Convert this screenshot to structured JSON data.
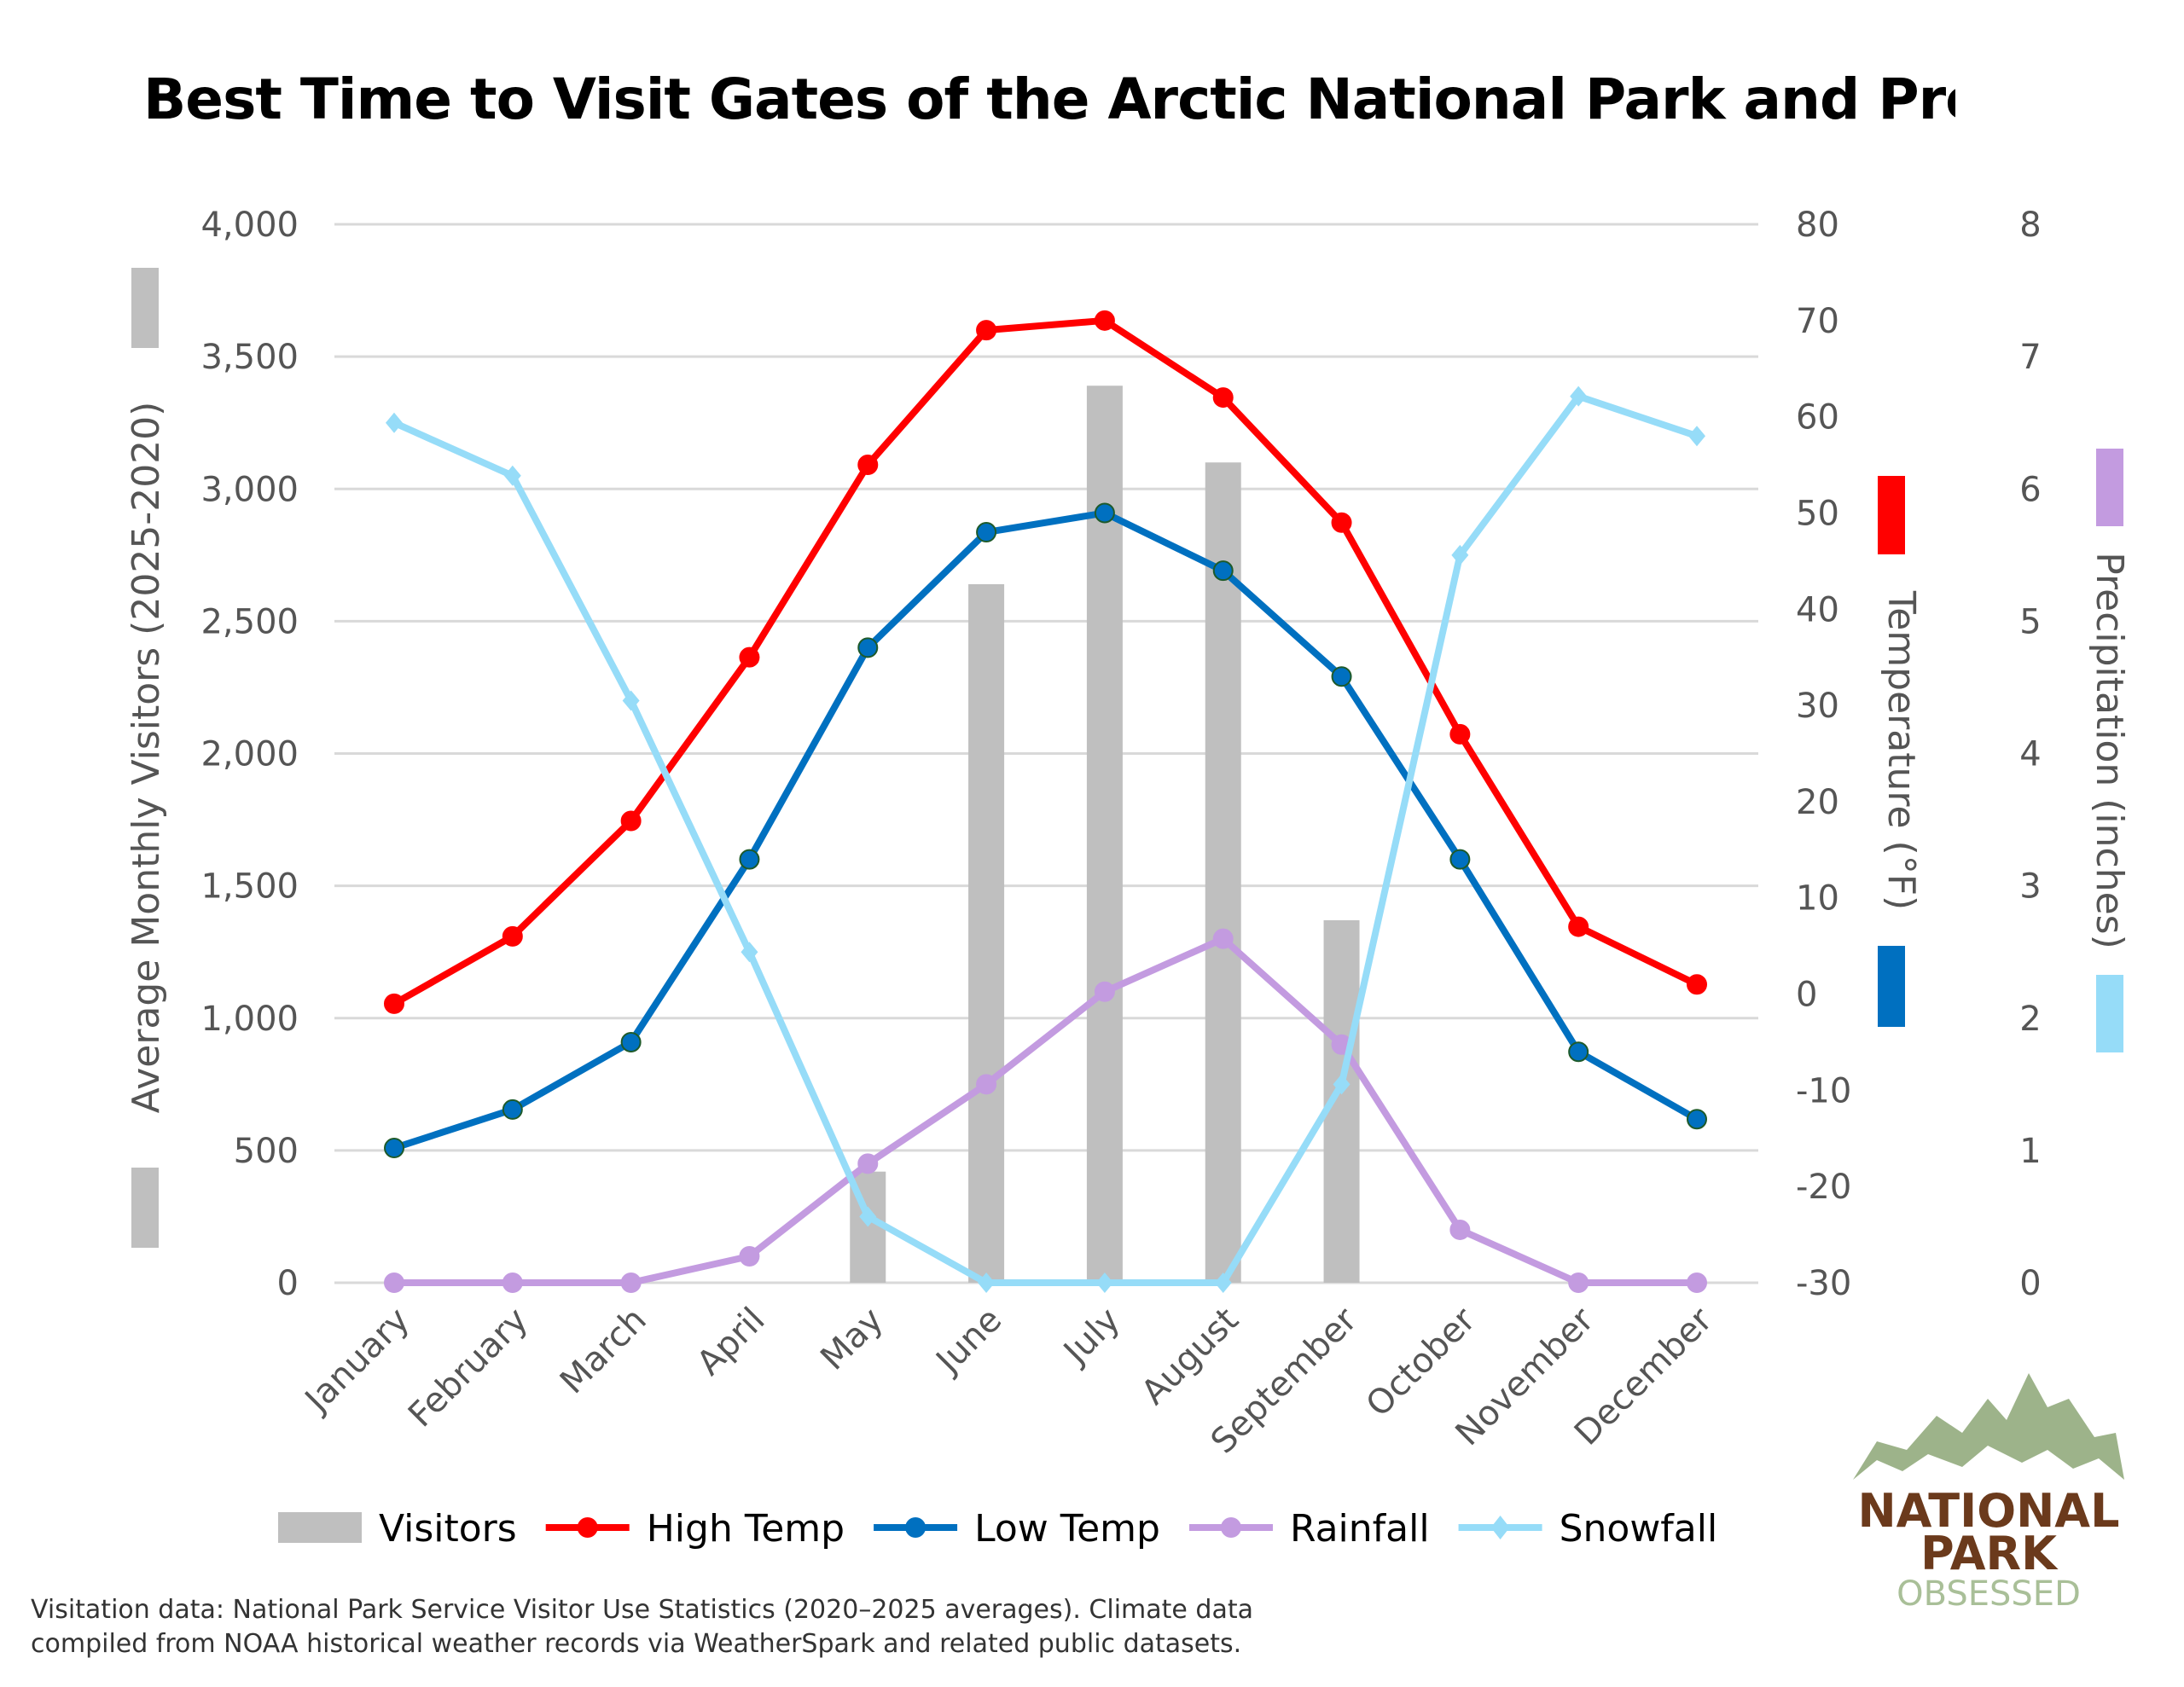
{
  "chart_data": {
    "type": "bar+line",
    "title": "Best Time to Visit Gates of the Arctic National Park and Prese",
    "categories": [
      "January",
      "February",
      "March",
      "April",
      "May",
      "June",
      "July",
      "August",
      "September",
      "October",
      "November",
      "December"
    ],
    "axes": {
      "left": {
        "label": "Average Monthly Visitors (2025-2020)",
        "range": [
          0,
          4000
        ],
        "ticks": [
          "0",
          "500",
          "1,000",
          "1,500",
          "2,000",
          "2,500",
          "3,000",
          "3,500",
          "4,000"
        ]
      },
      "right_temp": {
        "label": "Temperature (°F)",
        "range": [
          -30,
          80
        ],
        "ticks": [
          "-30",
          "-20",
          "-10",
          "0",
          "10",
          "20",
          "30",
          "40",
          "50",
          "60",
          "70",
          "80"
        ]
      },
      "right_precip": {
        "label": "Precipitation (inches)",
        "range": [
          0,
          8
        ],
        "ticks": [
          "0",
          "1",
          "2",
          "3",
          "4",
          "5",
          "6",
          "7",
          "8"
        ]
      }
    },
    "grid": true,
    "legend_position": "bottom",
    "series": [
      {
        "name": "Visitors",
        "type": "bar",
        "axis": "left",
        "color": "#bfbfbf",
        "values": [
          0,
          0,
          0,
          0,
          420,
          2640,
          3390,
          3100,
          1370,
          0,
          0,
          0
        ]
      },
      {
        "name": "High Temp",
        "type": "line",
        "axis": "right_temp",
        "color": "#ff0000",
        "marker": "circle",
        "values": [
          -1,
          6,
          18,
          35,
          55,
          69,
          70,
          62,
          49,
          27,
          7,
          1
        ]
      },
      {
        "name": "Low Temp",
        "type": "line",
        "axis": "right_temp",
        "color": "#0070c0",
        "marker": "circle",
        "values": [
          -16,
          -12,
          -5,
          14,
          36,
          48,
          50,
          44,
          33,
          14,
          -6,
          -13
        ]
      },
      {
        "name": "Rainfall",
        "type": "line",
        "axis": "right_precip",
        "color": "#c39be0",
        "marker": "circle",
        "values": [
          0,
          0,
          0,
          0.2,
          0.9,
          1.5,
          2.2,
          2.6,
          1.8,
          0.4,
          0,
          0
        ]
      },
      {
        "name": "Snowfall",
        "type": "line",
        "axis": "right_precip",
        "color": "#96dcf8",
        "marker": "diamond",
        "values": [
          6.5,
          6.1,
          4.4,
          2.5,
          0.5,
          0,
          0,
          0,
          1.5,
          5.5,
          6.7,
          6.4
        ]
      }
    ]
  },
  "footnote": {
    "line1": "Visitation data: National Park Service Visitor Use Statistics (2020–2025 averages). Climate data",
    "line2": "compiled from NOAA historical weather records via WeatherSpark and related public datasets."
  },
  "logo": {
    "line1": "NATIONAL",
    "line2": "PARK",
    "line3": "OBSESSED",
    "colors": {
      "mountain": "#9db38a",
      "text": "#6b3a1c",
      "sub": "#a9bf98"
    }
  }
}
